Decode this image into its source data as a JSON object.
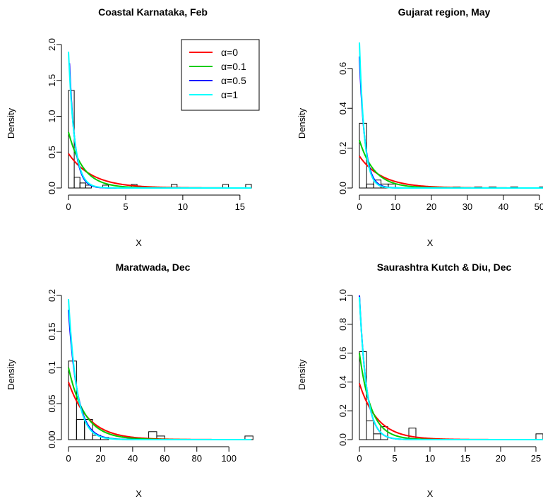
{
  "chart_data": [
    {
      "type": "histogram",
      "title": "Coastal Karnataka, Feb",
      "xlabel": "X",
      "ylabel": "Density",
      "xlim": [
        0,
        16
      ],
      "ylim": [
        0,
        2.0
      ],
      "xticks": [
        0,
        5,
        10,
        15
      ],
      "yticks": [
        0.0,
        0.5,
        1.0,
        1.5,
        2.0
      ],
      "bin_width": 0.5,
      "bins": [
        {
          "x0": 0.0,
          "density": 1.36
        },
        {
          "x0": 0.5,
          "density": 0.15
        },
        {
          "x0": 1.0,
          "density": 0.07
        },
        {
          "x0": 1.5,
          "density": 0.04
        },
        {
          "x0": 3.0,
          "density": 0.04
        },
        {
          "x0": 5.5,
          "density": 0.05
        },
        {
          "x0": 9.0,
          "density": 0.05
        },
        {
          "x0": 13.5,
          "density": 0.05
        },
        {
          "x0": 15.5,
          "density": 0.05
        }
      ],
      "curves": [
        {
          "name": "α=0",
          "color": "#ff0000",
          "rate": 0.48
        },
        {
          "name": "α=0.1",
          "color": "#00cc00",
          "rate": 0.78
        },
        {
          "name": "α=0.5",
          "color": "#0000ff",
          "rate": 2.05
        },
        {
          "name": "α=1",
          "color": "#00ffff",
          "rate": 1.9
        }
      ],
      "legend": {
        "placement": "top-right",
        "entries": [
          {
            "label": "α=0",
            "color": "#ff0000"
          },
          {
            "label": "α=0.1",
            "color": "#00cc00"
          },
          {
            "label": "α=0.5",
            "color": "#0000ff"
          },
          {
            "label": "α=1",
            "color": "#00ffff"
          }
        ]
      }
    },
    {
      "type": "histogram",
      "title": "Gujarat region, May",
      "xlabel": "X",
      "ylabel": "Density",
      "xlim": [
        0,
        51
      ],
      "ylim": [
        0,
        0.72
      ],
      "xticks": [
        0,
        10,
        20,
        30,
        40,
        50
      ],
      "yticks": [
        0.0,
        0.2,
        0.4,
        0.6
      ],
      "bin_width": 2,
      "bins": [
        {
          "x0": 0,
          "density": 0.325
        },
        {
          "x0": 2,
          "density": 0.02
        },
        {
          "x0": 4,
          "density": 0.04
        },
        {
          "x0": 6,
          "density": 0.02
        },
        {
          "x0": 8,
          "density": 0.02
        },
        {
          "x0": 26,
          "density": 0.005
        },
        {
          "x0": 32,
          "density": 0.005
        },
        {
          "x0": 36,
          "density": 0.005
        },
        {
          "x0": 42,
          "density": 0.005
        },
        {
          "x0": 50,
          "density": 0.005
        }
      ],
      "curves": [
        {
          "name": "α=0",
          "color": "#ff0000",
          "rate": 0.16
        },
        {
          "name": "α=0.1",
          "color": "#00cc00",
          "rate": 0.24
        },
        {
          "name": "α=0.5",
          "color": "#0000ff",
          "rate": 0.66
        },
        {
          "name": "α=1",
          "color": "#00ffff",
          "rate": 0.73
        }
      ]
    },
    {
      "type": "histogram",
      "title": "Maratwada, Dec",
      "xlabel": "X",
      "ylabel": "Density",
      "xlim": [
        0,
        114
      ],
      "ylim": [
        0,
        0.2
      ],
      "xticks": [
        0,
        20,
        40,
        60,
        80,
        100
      ],
      "yticks": [
        0.0,
        0.05,
        0.1,
        0.15,
        0.2
      ],
      "bin_width": 5,
      "bins": [
        {
          "x0": 0,
          "density": 0.109
        },
        {
          "x0": 5,
          "density": 0.028
        },
        {
          "x0": 10,
          "density": 0.028
        },
        {
          "x0": 15,
          "density": 0.006
        },
        {
          "x0": 20,
          "density": 0.003
        },
        {
          "x0": 50,
          "density": 0.011
        },
        {
          "x0": 55,
          "density": 0.005
        },
        {
          "x0": 110,
          "density": 0.005
        }
      ],
      "curves": [
        {
          "name": "α=0",
          "color": "#ff0000",
          "rate": 0.08
        },
        {
          "name": "α=0.1",
          "color": "#00cc00",
          "rate": 0.1
        },
        {
          "name": "α=0.5",
          "color": "#0000ff",
          "rate": 0.18
        },
        {
          "name": "α=1",
          "color": "#00ffff",
          "rate": 0.195
        }
      ]
    },
    {
      "type": "histogram",
      "title": "Saurashtra Kutch & Diu, Dec",
      "xlabel": "X",
      "ylabel": "Density",
      "xlim": [
        0,
        26
      ],
      "ylim": [
        0,
        1.0
      ],
      "xticks": [
        0,
        5,
        10,
        15,
        20,
        25
      ],
      "yticks": [
        0.0,
        0.2,
        0.4,
        0.6,
        0.8,
        1.0
      ],
      "bin_width": 1,
      "bins": [
        {
          "x0": 0,
          "density": 0.61
        },
        {
          "x0": 1,
          "density": 0.13
        },
        {
          "x0": 2,
          "density": 0.04
        },
        {
          "x0": 3,
          "density": 0.09
        },
        {
          "x0": 7,
          "density": 0.08
        },
        {
          "x0": 25,
          "density": 0.04
        }
      ],
      "curves": [
        {
          "name": "α=0",
          "color": "#ff0000",
          "rate": 0.39
        },
        {
          "name": "α=0.1",
          "color": "#00cc00",
          "rate": 0.6
        },
        {
          "name": "α=0.5",
          "color": "#0000ff",
          "rate": 1.0
        },
        {
          "name": "α=1",
          "color": "#00ffff",
          "rate": 0.99
        }
      ]
    }
  ]
}
